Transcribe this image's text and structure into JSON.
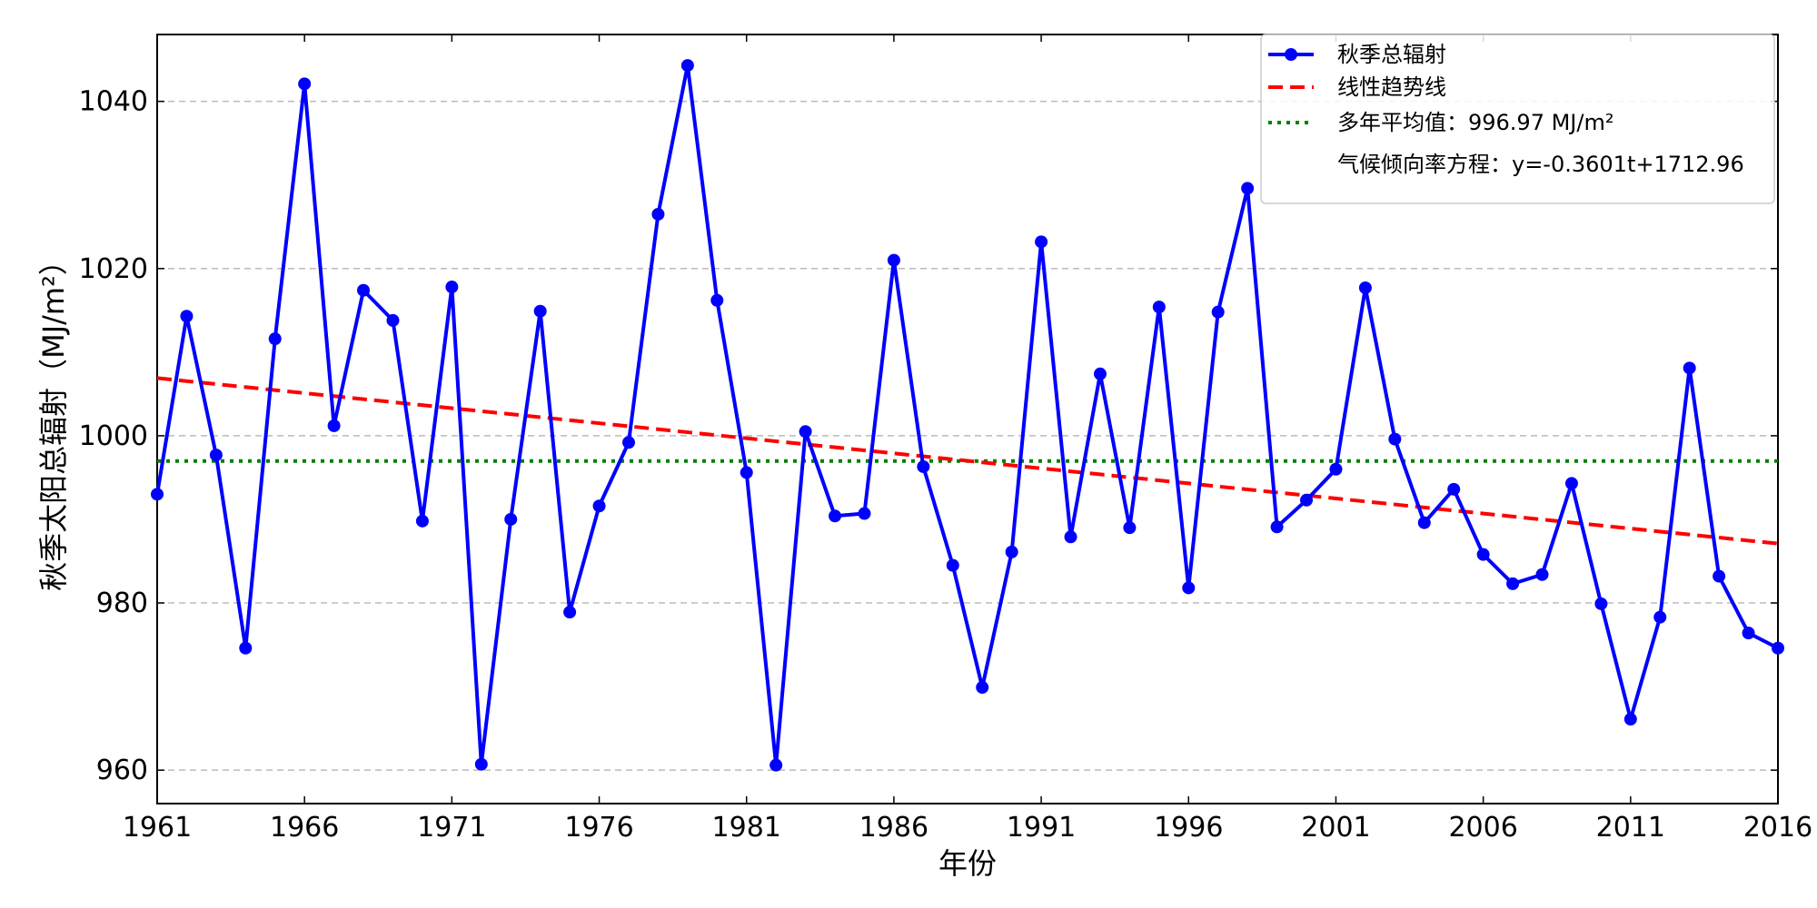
{
  "chart_data": {
    "type": "line",
    "title": "",
    "xlabel": "年份",
    "ylabel": "秋季太阳总辐射（MJ/m²）",
    "xlim": [
      1961,
      2016
    ],
    "ylim": [
      956,
      1048
    ],
    "x_ticks": [
      1961,
      1966,
      1971,
      1976,
      1981,
      1986,
      1991,
      1996,
      2001,
      2006,
      2011,
      2016
    ],
    "y_ticks": [
      960,
      980,
      1000,
      1020,
      1040
    ],
    "grid": "horizontal-dashed",
    "legend_position": "top-right",
    "x": [
      1961,
      1962,
      1963,
      1964,
      1965,
      1966,
      1967,
      1968,
      1969,
      1970,
      1971,
      1972,
      1973,
      1974,
      1975,
      1976,
      1977,
      1978,
      1979,
      1980,
      1981,
      1982,
      1983,
      1984,
      1985,
      1986,
      1987,
      1988,
      1989,
      1990,
      1991,
      1992,
      1993,
      1994,
      1995,
      1996,
      1997,
      1998,
      1999,
      2000,
      2001,
      2002,
      2003,
      2004,
      2005,
      2006,
      2007,
      2008,
      2009,
      2010,
      2011,
      2012,
      2013,
      2014,
      2015,
      2016
    ],
    "series": [
      {
        "name": "秋季总辐射",
        "color": "#0000ff",
        "style": "line-marker",
        "values": [
          993.0,
          1014.3,
          997.7,
          974.6,
          1011.6,
          1042.1,
          1001.2,
          1017.4,
          1013.8,
          989.8,
          1017.8,
          960.7,
          990.0,
          1014.9,
          978.9,
          991.6,
          999.2,
          1026.5,
          1044.3,
          1016.2,
          995.6,
          960.6,
          1000.5,
          990.4,
          990.7,
          1021.0,
          996.3,
          984.5,
          969.9,
          986.1,
          1023.2,
          987.9,
          1007.4,
          989.0,
          1015.4,
          981.8,
          1014.8,
          1029.6,
          989.1,
          992.3,
          996.0,
          1017.7,
          999.6,
          989.6,
          993.6,
          985.8,
          982.3,
          983.4,
          994.3,
          979.9,
          966.1,
          978.3,
          1008.1,
          983.2,
          976.4,
          974.6
        ]
      },
      {
        "name": "线性趋势线",
        "color": "#ff0000",
        "style": "dashed",
        "start": [
          1961,
          1006.9
        ],
        "end": [
          2016,
          987.1
        ]
      },
      {
        "name": "多年平均值：996.97 MJ/m²",
        "color": "#008000",
        "style": "dotted",
        "value": 996.97
      }
    ],
    "legend": {
      "entries": [
        "秋季总辐射",
        "线性趋势线",
        "多年平均值：996.97 MJ/m²",
        "气候倾向率方程：y=-0.3601t+1712.96"
      ],
      "equation": "气候倾向率方程：y=-0.3601t+1712.96"
    }
  }
}
